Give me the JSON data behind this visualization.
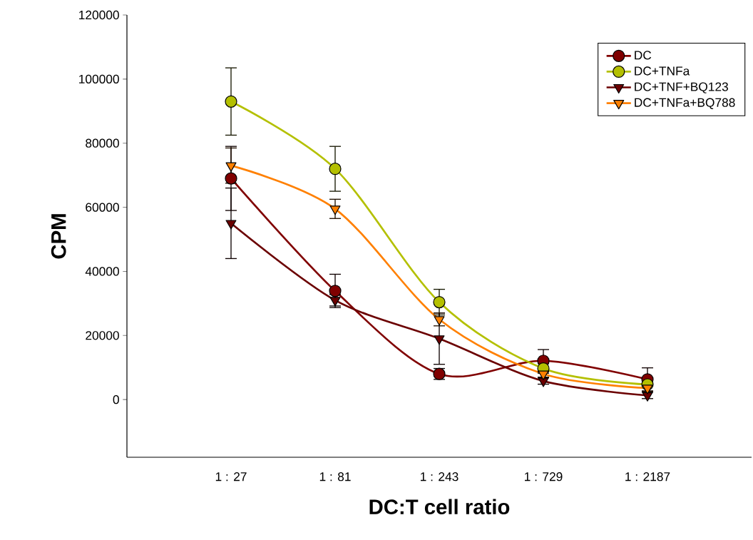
{
  "chart_data": {
    "type": "line",
    "xlabel": "DC:T cell ratio",
    "ylabel": "CPM",
    "categories": [
      "1 : 27",
      "1 : 81",
      "1 : 243",
      "1 : 729",
      "1 : 2187"
    ],
    "ylim": [
      -18000,
      120000
    ],
    "yticks": [
      0,
      20000,
      40000,
      60000,
      80000,
      100000,
      120000
    ],
    "legend": "top right",
    "grid": false,
    "series": [
      {
        "name": "DC",
        "color": "#800000",
        "marker": "circle",
        "values": [
          69000,
          33900,
          8000,
          12100,
          6300
        ],
        "errors": [
          10000,
          5200,
          1700,
          3500,
          3600
        ]
      },
      {
        "name": "DC+TNFa",
        "color": "#b4c000",
        "marker": "circle",
        "values": [
          93000,
          72000,
          30400,
          9700,
          4700
        ],
        "errors": [
          10500,
          7000,
          4000,
          1500,
          null
        ]
      },
      {
        "name": "DC+TNF+BQ123",
        "color": "#6b0000",
        "marker": "triangle",
        "values": [
          55000,
          31000,
          19000,
          5800,
          1300
        ],
        "errors": [
          11000,
          1800,
          8000,
          1000,
          1000
        ]
      },
      {
        "name": "DC+TNFa+BQ788",
        "color": "#ff8000",
        "marker": "triangle",
        "values": [
          73000,
          59500,
          25000,
          8000,
          3600
        ],
        "errors": [
          5500,
          3000,
          2000,
          1000,
          1000
        ]
      }
    ]
  }
}
